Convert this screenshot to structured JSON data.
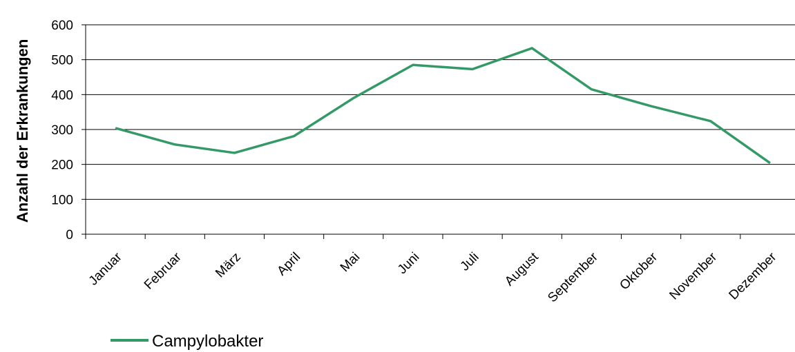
{
  "chart_data": {
    "type": "line",
    "categories": [
      "Januar",
      "Februar",
      "März",
      "April",
      "Mai",
      "Juni",
      "Juli",
      "August",
      "September",
      "Oktober",
      "November",
      "Dezember"
    ],
    "series": [
      {
        "name": "Campylobakter",
        "color": "#339966",
        "values": [
          304,
          257,
          233,
          281,
          390,
          485,
          473,
          533,
          415,
          367,
          324,
          204
        ]
      }
    ],
    "ylabel": "Anzahl der Erkrankungen",
    "xlabel": "",
    "ylim": [
      0,
      600
    ],
    "yticks": [
      0,
      100,
      200,
      300,
      400,
      500,
      600
    ],
    "grid": true,
    "legend": "bottom-left"
  }
}
